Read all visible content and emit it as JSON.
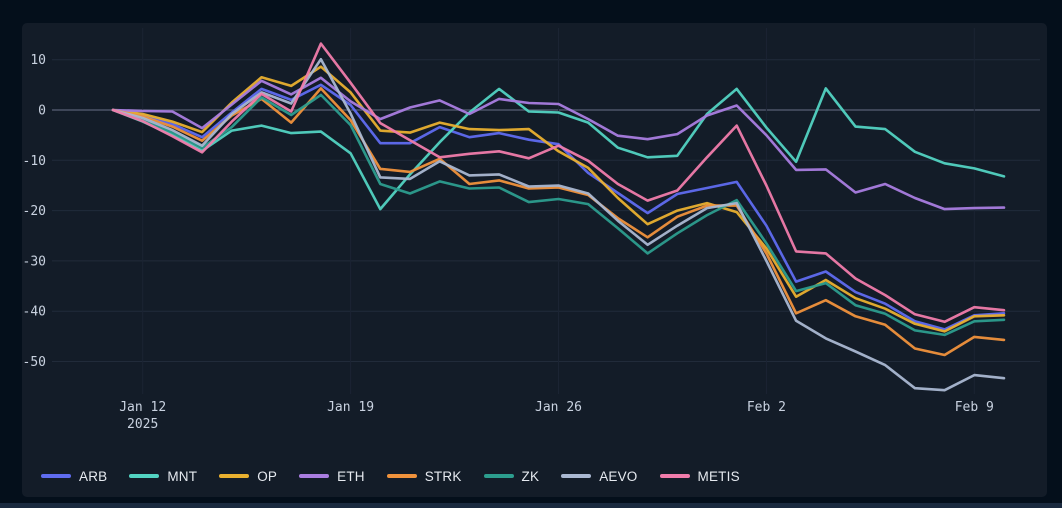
{
  "colors": {
    "background": "#040f1b",
    "panel": "#131c28",
    "gridline": "#212b3a",
    "gridline_vertical": "#1b2433",
    "zero_line": "#4c5568",
    "axis_text": "#c9d2e0",
    "legend_text": "#e6eaf0",
    "bottom_bar": "#1a2a3f"
  },
  "chart_data": {
    "type": "line",
    "title": "",
    "xlabel": "",
    "ylabel": "",
    "grid": true,
    "legend_position": "bottom",
    "ylim": [
      -56.5,
      16.3
    ],
    "y_ticks": [
      10,
      0,
      -10,
      -20,
      -30,
      -40,
      -50
    ],
    "x_ticks": [
      {
        "label": "Jan 12",
        "sublabel": "2025",
        "index": 1
      },
      {
        "label": "Jan 19",
        "index": 8
      },
      {
        "label": "Jan 26",
        "index": 15
      },
      {
        "label": "Feb 2",
        "index": 22
      },
      {
        "label": "Feb 9",
        "index": 29
      }
    ],
    "x": [
      "Jan 11",
      "Jan 12",
      "Jan 13",
      "Jan 14",
      "Jan 15",
      "Jan 16",
      "Jan 17",
      "Jan 18",
      "Jan 19",
      "Jan 20",
      "Jan 21",
      "Jan 22",
      "Jan 23",
      "Jan 24",
      "Jan 25",
      "Jan 26",
      "Jan 27",
      "Jan 28",
      "Jan 29",
      "Jan 30",
      "Jan 31",
      "Feb 1",
      "Feb 2",
      "Feb 3",
      "Feb 4",
      "Feb 5",
      "Feb 6",
      "Feb 7",
      "Feb 8",
      "Feb 9",
      "Feb 10"
    ],
    "series": [
      {
        "name": "ARB",
        "color": "#5f6cf0",
        "values": [
          0,
          -1,
          -2.8,
          -5.4,
          -0.5,
          4.2,
          2,
          5,
          1,
          -6.6,
          -6.6,
          -3.4,
          -5.4,
          -4.6,
          -5.9,
          -6.8,
          -12.5,
          -16.5,
          -20.5,
          -16.7,
          -15.5,
          -14.3,
          -23,
          -34.1,
          -32.1,
          -36.2,
          -38.5,
          -42,
          -43.6,
          -40.8,
          -40.4
        ]
      },
      {
        "name": "MNT",
        "color": "#52d3c2",
        "values": [
          0,
          -2.3,
          -5,
          -8.1,
          -4.1,
          -3.1,
          -4.6,
          -4.3,
          -8.6,
          -19.7,
          -12.8,
          -6.4,
          -0.5,
          4.2,
          -0.3,
          -0.5,
          -2.5,
          -7.5,
          -9.4,
          -9.1,
          -0.8,
          4.2,
          -3.5,
          -10.3,
          4.3,
          -3.3,
          -3.8,
          -8.3,
          -10.6,
          -11.6,
          -13.2
        ]
      },
      {
        "name": "OP",
        "color": "#e9b02f",
        "values": [
          0,
          -0.8,
          -2.3,
          -4.4,
          1.5,
          6.5,
          4.8,
          8.6,
          3.5,
          -4.1,
          -4.5,
          -2.5,
          -3.8,
          -4,
          -3.8,
          -8.2,
          -11.5,
          -17.5,
          -22.7,
          -20,
          -18.5,
          -20.3,
          -27.5,
          -37.1,
          -33.8,
          -37.4,
          -39.5,
          -42.5,
          -44,
          -41,
          -40.8
        ]
      },
      {
        "name": "ETH",
        "color": "#a97de0",
        "values": [
          0,
          -0.2,
          -0.3,
          -3.6,
          1.1,
          5.8,
          3.1,
          6.4,
          1.7,
          -1.8,
          0.5,
          1.9,
          -0.8,
          2.2,
          1.4,
          1.2,
          -1.8,
          -5.1,
          -5.8,
          -4.8,
          -1.1,
          0.9,
          -5,
          -11.9,
          -11.8,
          -16.4,
          -14.7,
          -17.5,
          -19.7,
          -19.5,
          -19.4
        ]
      },
      {
        "name": "STRK",
        "color": "#f0923c",
        "values": [
          0,
          -1.3,
          -3.3,
          -6.1,
          -1.1,
          2.2,
          -2.5,
          4.3,
          -2,
          -11.7,
          -12.3,
          -9.7,
          -14.7,
          -14,
          -15.6,
          -15.4,
          -16.9,
          -21.5,
          -25.3,
          -21.2,
          -19,
          -19,
          -28.5,
          -40.4,
          -37.8,
          -41,
          -42.7,
          -47.4,
          -48.7,
          -45.1,
          -45.7
        ]
      },
      {
        "name": "ZK",
        "color": "#2c9d8e",
        "values": [
          0,
          -2,
          -4.5,
          -7.5,
          -3.4,
          2.5,
          -1,
          3,
          -3,
          -14.7,
          -16.6,
          -14.2,
          -15.6,
          -15.4,
          -18.3,
          -17.7,
          -18.7,
          -23.5,
          -28.5,
          -24.5,
          -20.9,
          -17.9,
          -26.5,
          -36,
          -34.4,
          -38.8,
          -40.5,
          -43.8,
          -44.7,
          -42,
          -41.7
        ]
      },
      {
        "name": "AEVO",
        "color": "#aab8d2",
        "values": [
          0,
          -1.6,
          -4,
          -7.1,
          -0.8,
          3.5,
          1.3,
          10.1,
          -0.7,
          -13.4,
          -13.7,
          -10.2,
          -13,
          -12.8,
          -15.2,
          -15,
          -16.6,
          -22,
          -26.8,
          -23,
          -19.5,
          -18.5,
          -30,
          -41.9,
          -45.4,
          -48,
          -50.7,
          -55.3,
          -55.7,
          -52.7,
          -53.3
        ]
      },
      {
        "name": "METIS",
        "color": "#f07cab",
        "values": [
          0,
          -2.2,
          -5.2,
          -8.4,
          -2.3,
          3.2,
          -0.3,
          13.2,
          5.4,
          -2.6,
          -6,
          -9.4,
          -8.7,
          -8.2,
          -9.6,
          -7.1,
          -10.1,
          -14.7,
          -18,
          -16,
          -9.4,
          -3.1,
          -15,
          -28.1,
          -28.5,
          -33.5,
          -36.8,
          -40.6,
          -42.1,
          -39.2,
          -39.8
        ]
      }
    ]
  }
}
